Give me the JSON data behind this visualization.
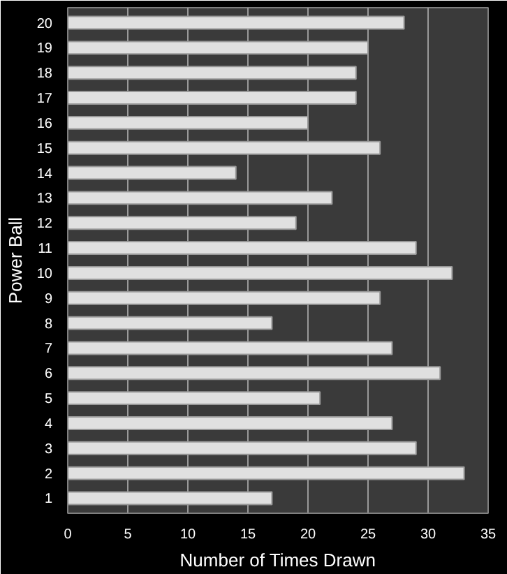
{
  "chart_data": {
    "type": "bar",
    "orientation": "horizontal",
    "xlabel": "Number of Times Drawn",
    "ylabel": "Power Ball",
    "categories": [
      "20",
      "19",
      "18",
      "17",
      "16",
      "15",
      "14",
      "13",
      "12",
      "11",
      "10",
      "9",
      "8",
      "7",
      "6",
      "5",
      "4",
      "3",
      "2",
      "1"
    ],
    "values": [
      28,
      25,
      24,
      24,
      20,
      26,
      14,
      22,
      19,
      29,
      32,
      26,
      17,
      27,
      31,
      21,
      27,
      29,
      33,
      17
    ],
    "color": "#e0e0e0",
    "xlim": [
      0,
      35
    ],
    "xticks": [
      0,
      5,
      10,
      15,
      20,
      25,
      30,
      35
    ],
    "grid": "x"
  }
}
